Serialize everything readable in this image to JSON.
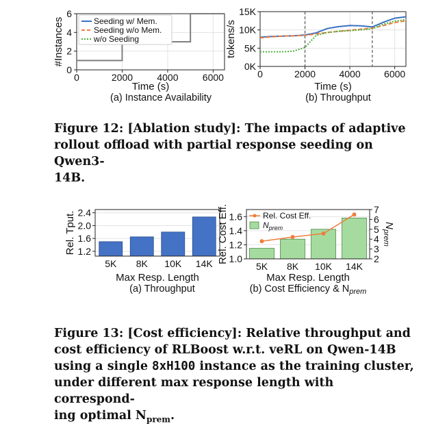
{
  "figure12": {
    "caption_lines": [
      "Figure 12: [Ablation study]: The impacts of adaptive",
      "rollout offload with partial response seeding on Qwen3-",
      "14B."
    ],
    "panels": {
      "a": {
        "label": "(a) Instance Availability",
        "xlabel": "Time (s)",
        "ylabel": "#Instances"
      },
      "b": {
        "label": "(b) Throughput",
        "xlabel": "Time (s)",
        "ylabel": "tokens/s"
      }
    }
  },
  "figure13": {
    "caption_lines": [
      "Figure 13: [Cost efficiency]: Relative throughput and",
      "cost efficiency of RLBoost w.r.t. veRL on Qwen-14B",
      "using a single 8xH100 instance as the training cluster,",
      "under different max response length with correspond-",
      "ing optimal N"
    ],
    "caption_mono": "8xH100",
    "caption_sub": "prem",
    "caption_end": ".",
    "panels": {
      "a": {
        "label": "(a) Throughput",
        "xlabel": "Max Resp. Length",
        "ylabel": "Rel. Tput."
      },
      "b": {
        "label": "(b) Cost Efficiency & N",
        "label_sub": "prem",
        "xlabel": "Max Resp. Length",
        "ylabel": "Rel. Cost Eff.",
        "ylabel_right": "N",
        "ylabel_right_sub": "prem"
      }
    }
  },
  "colors": {
    "blue": "#3a71c2",
    "orange": "#ef7d3c",
    "green": "#4caf3a",
    "gray": "#7f7f7f",
    "bar_blue": "#4472c4",
    "bar_green": "#a6dba0"
  },
  "chart_data": [
    {
      "id": "fig12a",
      "type": "line",
      "xlabel": "Time (s)",
      "ylabel": "#Instances",
      "xlim": [
        0,
        6500
      ],
      "ylim": [
        0,
        6
      ],
      "xticks": [
        "0",
        "2000",
        "4000",
        "6000"
      ],
      "yticks": [
        "0",
        "2",
        "4",
        "6"
      ],
      "legend": [
        "Seeding w/ Mem.",
        "Seeding w/o Mem.",
        "w/o Seeding"
      ],
      "legend_placement": "top-left",
      "series": [
        {
          "x": [
            0,
            2000,
            2000,
            5000,
            5000,
            6500
          ],
          "y": [
            1,
            1,
            3,
            3,
            6,
            6
          ]
        }
      ]
    },
    {
      "id": "fig12b",
      "type": "line",
      "xlabel": "Time (s)",
      "ylabel": "tokens/s",
      "xlim": [
        0,
        6500
      ],
      "ylim": [
        0,
        15000
      ],
      "xticks": [
        "0",
        "2000",
        "4000",
        "6000"
      ],
      "yticks": [
        "0K",
        "5K",
        "10K",
        "15K"
      ],
      "vlines": [
        2000,
        5000
      ],
      "series": [
        {
          "name": "Seeding w/ Mem.",
          "x": [
            0,
            500,
            1000,
            1500,
            2000,
            2500,
            3000,
            3500,
            4000,
            4500,
            5000,
            5500,
            6000,
            6500
          ],
          "y": [
            8000,
            8200,
            8300,
            8400,
            8600,
            9200,
            10400,
            10900,
            11200,
            11100,
            10800,
            12100,
            13200,
            13600
          ]
        },
        {
          "name": "Seeding w/o Mem.",
          "x": [
            0,
            500,
            1000,
            1500,
            2000,
            2500,
            3000,
            3500,
            4000,
            4500,
            5000,
            5500,
            6000,
            6500
          ],
          "y": [
            7800,
            8100,
            8300,
            8400,
            8500,
            8900,
            9300,
            9600,
            9900,
            10200,
            10500,
            11200,
            12000,
            12500
          ]
        },
        {
          "name": "w/o Seeding",
          "x": [
            0,
            500,
            1000,
            1500,
            2000,
            2500,
            3000,
            3500,
            4000,
            4500,
            5000,
            5500,
            6000,
            6500
          ],
          "y": [
            4000,
            4000,
            4000,
            4200,
            5200,
            8500,
            9300,
            9600,
            9800,
            10000,
            10300,
            11600,
            12400,
            12800
          ]
        }
      ]
    },
    {
      "id": "fig13a",
      "type": "bar",
      "xlabel": "Max Resp. Length",
      "ylabel": "Rel. Tput.",
      "categories": [
        "5K",
        "8K",
        "10K",
        "14K"
      ],
      "values": [
        1.5,
        1.65,
        1.8,
        2.27
      ],
      "ylim": [
        1.05,
        2.5
      ],
      "yticks": [
        "1.2",
        "1.6",
        "2.0",
        "2.4"
      ]
    },
    {
      "id": "fig13b",
      "type": "bar",
      "xlabel": "Max Resp. Length",
      "ylabel": "Rel. Cost Eff.",
      "categories": [
        "5K",
        "8K",
        "10K",
        "14K"
      ],
      "legend": [
        "Rel. Cost Eff.",
        "N"
      ],
      "legend_sub": "prem",
      "legend_placement": "top-left",
      "ylim": [
        1.0,
        1.7
      ],
      "yticks": [
        "1.0",
        "1.2",
        "1.4",
        "1.6"
      ],
      "y2lim": [
        2,
        7
      ],
      "y2ticks": [
        "2",
        "3",
        "4",
        "5",
        "6",
        "7"
      ],
      "series": [
        {
          "name": "N",
          "type": "bar",
          "values": [
            1.15,
            1.28,
            1.42,
            1.58
          ]
        },
        {
          "name": "Rel. Cost Eff.",
          "type": "line",
          "values": [
            1.25,
            1.31,
            1.36,
            1.63
          ]
        }
      ]
    }
  ]
}
